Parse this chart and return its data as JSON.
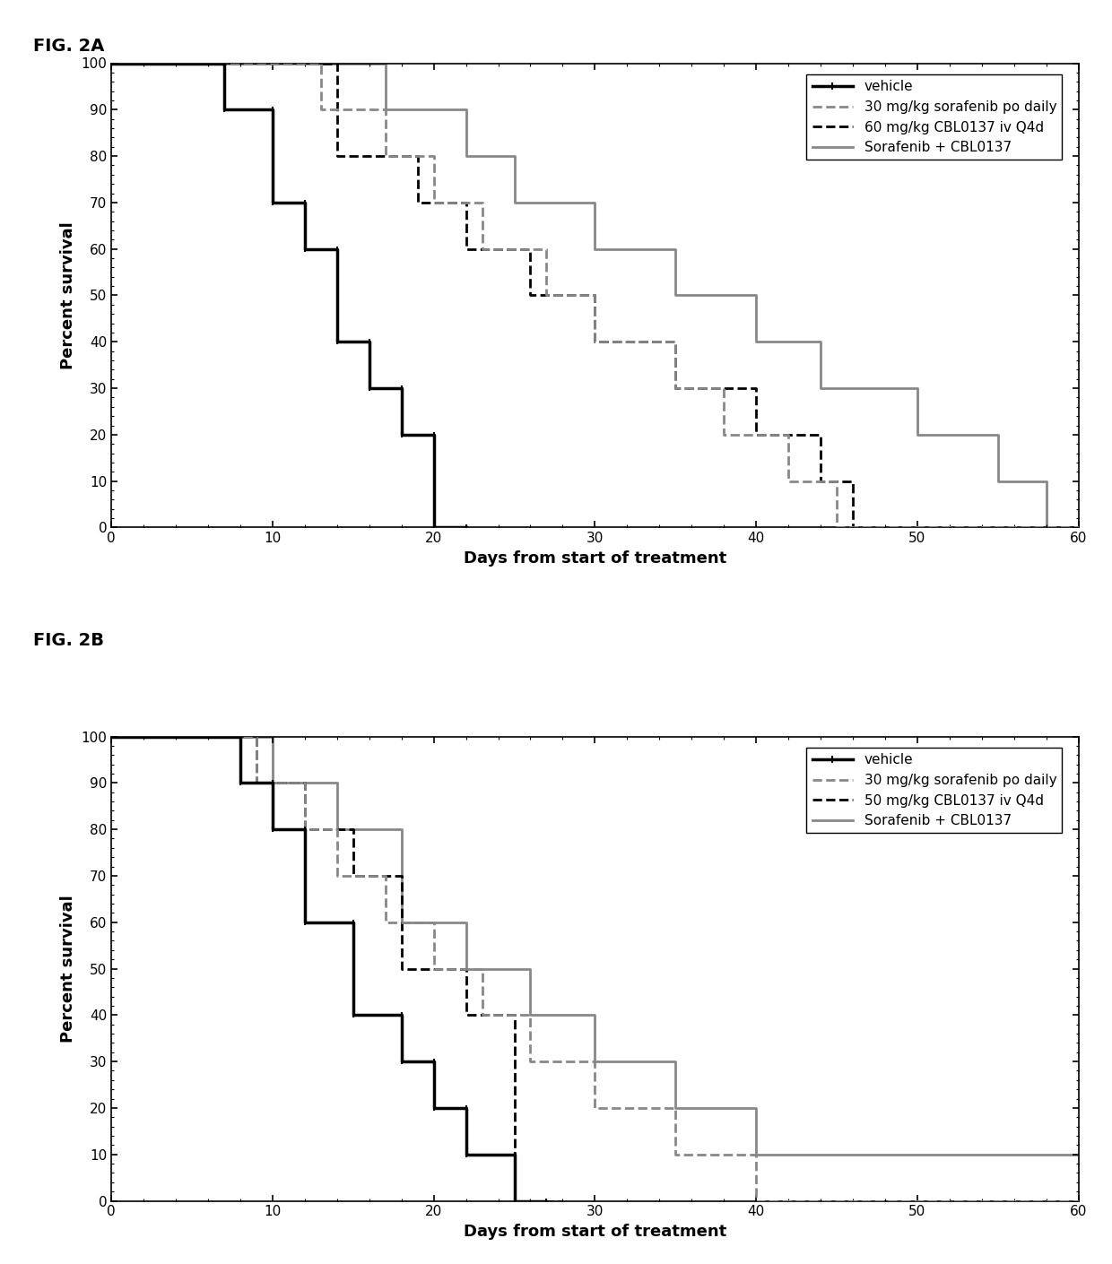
{
  "fig2a": {
    "title": "FIG. 2A",
    "xlabel": "Days from start of treatment",
    "ylabel": "Percent survival",
    "xlim": [
      0,
      60
    ],
    "ylim": [
      0,
      100
    ],
    "xticks": [
      0,
      10,
      20,
      30,
      40,
      50,
      60
    ],
    "yticks": [
      0,
      10,
      20,
      30,
      40,
      50,
      60,
      70,
      80,
      90,
      100
    ],
    "series": [
      {
        "label": "vehicle",
        "color": "#000000",
        "linewidth": 2.5,
        "linestyle": "solid",
        "x": [
          0,
          7,
          7,
          10,
          10,
          12,
          12,
          14,
          14,
          16,
          16,
          18,
          18,
          20,
          20,
          22
        ],
        "y": [
          100,
          100,
          90,
          90,
          70,
          70,
          60,
          60,
          40,
          40,
          30,
          30,
          20,
          20,
          0,
          0
        ]
      },
      {
        "label": "30 mg/kg sorafenib po daily",
        "color": "#888888",
        "linewidth": 2.0,
        "linestyle": "dashed",
        "x": [
          0,
          13,
          13,
          17,
          17,
          20,
          20,
          23,
          23,
          27,
          27,
          30,
          30,
          35,
          35,
          38,
          38,
          42,
          42,
          45,
          45,
          60
        ],
        "y": [
          100,
          100,
          90,
          90,
          80,
          80,
          70,
          70,
          60,
          60,
          50,
          50,
          40,
          40,
          30,
          30,
          20,
          20,
          10,
          10,
          0,
          0
        ]
      },
      {
        "label": "60 mg/kg CBL0137 iv Q4d",
        "color": "#000000",
        "linewidth": 2.0,
        "linestyle": "dashed",
        "x": [
          0,
          14,
          14,
          19,
          19,
          22,
          22,
          26,
          26,
          30,
          30,
          35,
          35,
          40,
          40,
          44,
          44,
          46,
          46,
          60
        ],
        "y": [
          100,
          100,
          80,
          80,
          70,
          70,
          60,
          60,
          50,
          50,
          40,
          40,
          30,
          30,
          20,
          20,
          10,
          10,
          0,
          0
        ]
      },
      {
        "label": "Sorafenib + CBL0137",
        "color": "#888888",
        "linewidth": 2.0,
        "linestyle": "solid",
        "x": [
          0,
          17,
          17,
          22,
          22,
          25,
          25,
          30,
          30,
          35,
          35,
          40,
          40,
          44,
          44,
          50,
          50,
          55,
          55,
          58,
          58,
          60
        ],
        "y": [
          100,
          100,
          90,
          90,
          80,
          80,
          70,
          70,
          60,
          60,
          50,
          50,
          40,
          40,
          30,
          30,
          20,
          20,
          10,
          10,
          0,
          0
        ]
      }
    ]
  },
  "fig2b": {
    "title": "FIG. 2B",
    "xlabel": "Days from start of treatment",
    "ylabel": "Percent survival",
    "xlim": [
      0,
      60
    ],
    "ylim": [
      0,
      100
    ],
    "xticks": [
      0,
      10,
      20,
      30,
      40,
      50,
      60
    ],
    "yticks": [
      0,
      10,
      20,
      30,
      40,
      50,
      60,
      70,
      80,
      90,
      100
    ],
    "series": [
      {
        "label": "vehicle",
        "color": "#000000",
        "linewidth": 2.5,
        "linestyle": "solid",
        "x": [
          0,
          8,
          8,
          10,
          10,
          12,
          12,
          15,
          15,
          18,
          18,
          20,
          20,
          22,
          22,
          25,
          25,
          27
        ],
        "y": [
          100,
          100,
          90,
          90,
          80,
          80,
          60,
          60,
          40,
          40,
          30,
          30,
          20,
          20,
          10,
          10,
          0,
          0
        ]
      },
      {
        "label": "30 mg/kg sorafenib po daily",
        "color": "#888888",
        "linewidth": 2.0,
        "linestyle": "dashed",
        "x": [
          0,
          9,
          9,
          12,
          12,
          14,
          14,
          17,
          17,
          20,
          20,
          23,
          23,
          26,
          26,
          30,
          30,
          35,
          35,
          40,
          40,
          60
        ],
        "y": [
          100,
          100,
          90,
          90,
          80,
          80,
          70,
          70,
          60,
          60,
          50,
          50,
          40,
          40,
          30,
          30,
          20,
          20,
          10,
          10,
          0,
          0
        ]
      },
      {
        "label": "50 mg/kg CBL0137 iv Q4d",
        "color": "#000000",
        "linewidth": 2.0,
        "linestyle": "dashed",
        "x": [
          0,
          9,
          9,
          12,
          12,
          15,
          15,
          18,
          18,
          22,
          22,
          25,
          25,
          28
        ],
        "y": [
          100,
          100,
          90,
          90,
          80,
          80,
          70,
          70,
          50,
          50,
          40,
          40,
          0,
          0
        ]
      },
      {
        "label": "Sorafenib + CBL0137",
        "color": "#888888",
        "linewidth": 2.0,
        "linestyle": "solid",
        "x": [
          0,
          10,
          10,
          14,
          14,
          18,
          18,
          22,
          22,
          26,
          26,
          30,
          30,
          35,
          35,
          40,
          40,
          60
        ],
        "y": [
          100,
          100,
          90,
          90,
          80,
          80,
          60,
          60,
          50,
          50,
          40,
          40,
          30,
          30,
          20,
          20,
          10,
          10
        ]
      }
    ]
  },
  "fig_label_fontsize": 14,
  "axis_label_fontsize": 13,
  "tick_label_fontsize": 11,
  "legend_fontsize": 11
}
